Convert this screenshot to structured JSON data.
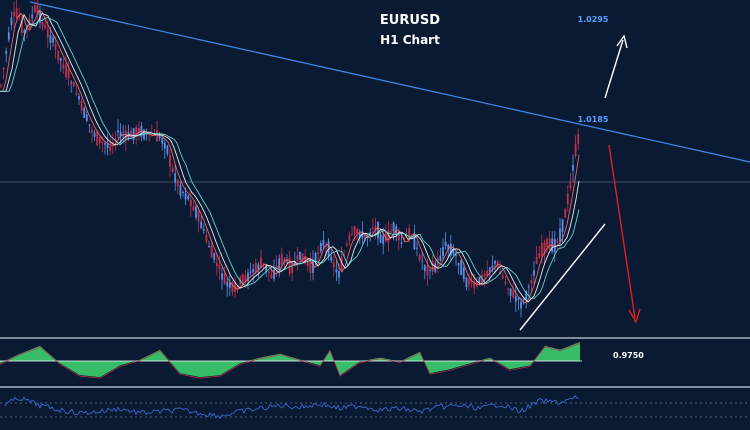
{
  "chart_data": {
    "type": "line",
    "title": "EURUSD",
    "subtitle": "H1 Chart",
    "symbol": "EURUSD",
    "timeframe": "H1",
    "annotations": {
      "upper_target": "1.0295",
      "resistance_level": "1.0185",
      "current_level": "0.9750"
    },
    "price_path": [
      [
        0,
        0.62
      ],
      [
        6,
        0.35
      ],
      [
        12,
        0.1
      ],
      [
        18,
        0.05
      ],
      [
        24,
        0.2
      ],
      [
        30,
        0.12
      ],
      [
        36,
        0.02
      ],
      [
        44,
        0.15
      ],
      [
        52,
        0.25
      ],
      [
        60,
        0.38
      ],
      [
        68,
        0.5
      ],
      [
        76,
        0.62
      ],
      [
        84,
        0.78
      ],
      [
        92,
        0.9
      ],
      [
        100,
        0.98
      ],
      [
        110,
        1.02
      ],
      [
        118,
        0.92
      ],
      [
        128,
        0.95
      ],
      [
        138,
        0.9
      ],
      [
        148,
        0.94
      ],
      [
        156,
        0.93
      ],
      [
        166,
        1.0
      ],
      [
        172,
        1.18
      ],
      [
        180,
        1.32
      ],
      [
        190,
        1.4
      ],
      [
        200,
        1.55
      ],
      [
        210,
        1.75
      ],
      [
        218,
        1.88
      ],
      [
        226,
        2.0
      ],
      [
        234,
        2.05
      ],
      [
        242,
        1.98
      ],
      [
        252,
        1.92
      ],
      [
        262,
        1.85
      ],
      [
        272,
        1.95
      ],
      [
        282,
        1.82
      ],
      [
        292,
        1.88
      ],
      [
        302,
        1.8
      ],
      [
        312,
        1.9
      ],
      [
        322,
        1.7
      ],
      [
        330,
        1.78
      ],
      [
        338,
        1.95
      ],
      [
        348,
        1.7
      ],
      [
        356,
        1.62
      ],
      [
        366,
        1.68
      ],
      [
        374,
        1.58
      ],
      [
        384,
        1.7
      ],
      [
        394,
        1.6
      ],
      [
        402,
        1.72
      ],
      [
        410,
        1.62
      ],
      [
        418,
        1.78
      ],
      [
        426,
        1.9
      ],
      [
        436,
        1.88
      ],
      [
        446,
        1.72
      ],
      [
        456,
        1.8
      ],
      [
        466,
        1.98
      ],
      [
        476,
        2.02
      ],
      [
        486,
        1.92
      ],
      [
        496,
        1.85
      ],
      [
        506,
        2.0
      ],
      [
        514,
        2.1
      ],
      [
        522,
        2.15
      ],
      [
        530,
        2.02
      ],
      [
        538,
        1.8
      ],
      [
        546,
        1.72
      ],
      [
        554,
        1.74
      ],
      [
        562,
        1.62
      ],
      [
        570,
        1.3
      ],
      [
        576,
        1.02
      ],
      [
        580,
        0.92
      ]
    ],
    "oscillator": [
      [
        0,
        0.55
      ],
      [
        20,
        0.3
      ],
      [
        40,
        0.1
      ],
      [
        60,
        0.55
      ],
      [
        80,
        0.85
      ],
      [
        100,
        0.9
      ],
      [
        120,
        0.6
      ],
      [
        140,
        0.45
      ],
      [
        160,
        0.2
      ],
      [
        180,
        0.8
      ],
      [
        200,
        0.9
      ],
      [
        220,
        0.85
      ],
      [
        240,
        0.55
      ],
      [
        260,
        0.4
      ],
      [
        280,
        0.3
      ],
      [
        300,
        0.45
      ],
      [
        320,
        0.6
      ],
      [
        330,
        0.2
      ],
      [
        340,
        0.85
      ],
      [
        360,
        0.5
      ],
      [
        380,
        0.4
      ],
      [
        400,
        0.5
      ],
      [
        420,
        0.25
      ],
      [
        430,
        0.8
      ],
      [
        450,
        0.7
      ],
      [
        470,
        0.55
      ],
      [
        490,
        0.4
      ],
      [
        510,
        0.7
      ],
      [
        530,
        0.6
      ],
      [
        545,
        0.1
      ],
      [
        560,
        0.2
      ],
      [
        575,
        0.05
      ],
      [
        580,
        0.0
      ]
    ],
    "momentum": [
      [
        5,
        0.3
      ],
      [
        20,
        0.1
      ],
      [
        40,
        0.35
      ],
      [
        60,
        0.5
      ],
      [
        80,
        0.6
      ],
      [
        100,
        0.55
      ],
      [
        120,
        0.45
      ],
      [
        140,
        0.6
      ],
      [
        160,
        0.55
      ],
      [
        180,
        0.5
      ],
      [
        200,
        0.6
      ],
      [
        220,
        0.7
      ],
      [
        240,
        0.55
      ],
      [
        260,
        0.45
      ],
      [
        280,
        0.35
      ],
      [
        300,
        0.4
      ],
      [
        320,
        0.3
      ],
      [
        340,
        0.45
      ],
      [
        360,
        0.35
      ],
      [
        380,
        0.5
      ],
      [
        400,
        0.45
      ],
      [
        420,
        0.55
      ],
      [
        440,
        0.4
      ],
      [
        460,
        0.35
      ],
      [
        480,
        0.45
      ],
      [
        500,
        0.3
      ],
      [
        520,
        0.55
      ],
      [
        540,
        0.2
      ],
      [
        560,
        0.25
      ],
      [
        575,
        0.1
      ],
      [
        580,
        0.05
      ]
    ],
    "colors": {
      "background": "#0b1a33",
      "price": "#5a8fe6",
      "candle_down": "#c0304a",
      "ma_fast": "#ff6b6b",
      "ma_white": "#ffffff",
      "ma_cyan": "#6fe3d8",
      "trendline": "#3f8cf0",
      "support": "#ffffff",
      "down_arrow": "#e0201e",
      "up_arrow": "#ffffff",
      "level_text": "#5aa0ff",
      "oscillator_fill": "#3ccf6e",
      "momentum_line": "#3f6fe0"
    }
  }
}
